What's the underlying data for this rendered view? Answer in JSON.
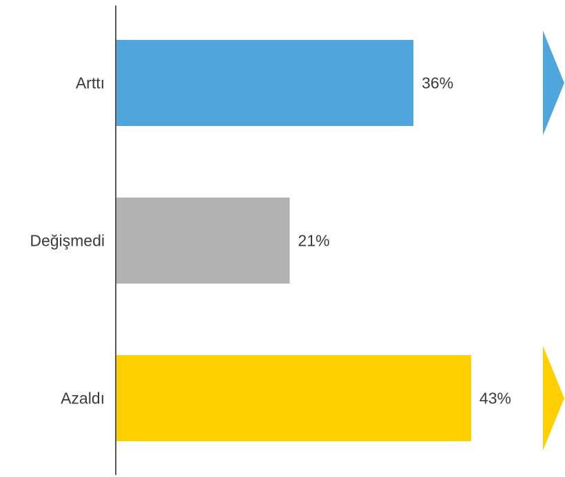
{
  "chart_data": {
    "type": "bar",
    "orientation": "horizontal",
    "categories": [
      "Arttı",
      "Değişmedi",
      "Azaldı"
    ],
    "values": [
      36,
      21,
      43
    ],
    "value_labels": [
      "36%",
      "21%",
      "43%"
    ],
    "colors": [
      "#4fa6dd",
      "#b3b3b3",
      "#ffd000"
    ],
    "arrow_markers": [
      {
        "category": "Arttı",
        "color": "#4fa6dd"
      },
      {
        "category": "Azaldı",
        "color": "#ffd000"
      }
    ],
    "title": "",
    "xlabel": "",
    "ylabel": "",
    "xlim": [
      0,
      50
    ],
    "grid": false,
    "legend": "none"
  }
}
